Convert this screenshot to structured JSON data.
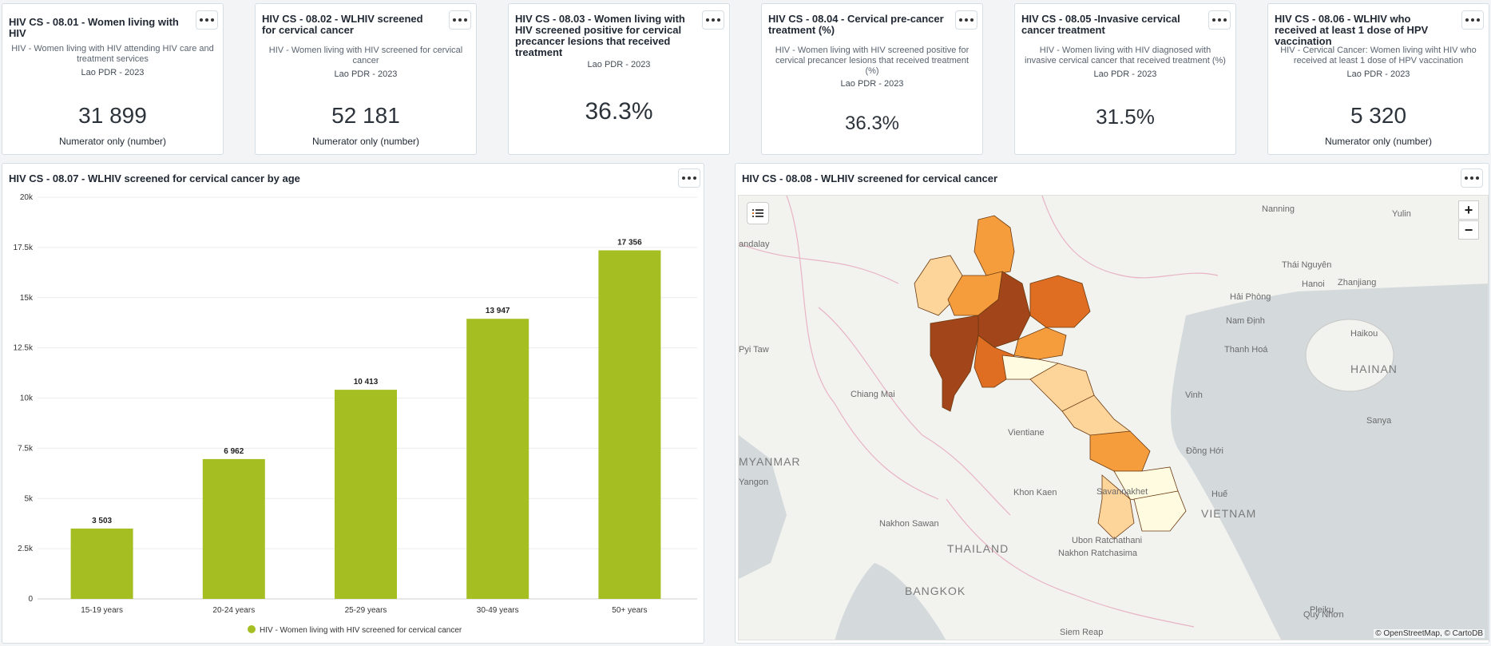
{
  "kpis": [
    {
      "title": "HIV CS - 08.01 - Women living with HIV",
      "subtitle": "HIV - Women living with HIV attending HIV care and treatment services",
      "period": "Lao PDR - 2023",
      "value": "31 899",
      "unit": "Numerator only (number)"
    },
    {
      "title": "HIV CS - 08.02 - WLHIV screened for cervical cancer",
      "subtitle": "HIV - Women living with HIV screened for cervical cancer",
      "period": "Lao PDR - 2023",
      "value": "52 181",
      "unit": "Numerator only (number)"
    },
    {
      "title": "HIV CS - 08.03 - Women living with HIV screened positive for cervical precancer lesions that received treatment",
      "subtitle": "",
      "period": "Lao PDR - 2023",
      "value": "36.3%",
      "unit": ""
    },
    {
      "title": "HIV CS - 08.04 - Cervical pre-cancer treatment (%)",
      "subtitle": "HIV - Women living with HIV screened positive for cervical precancer lesions that received treatment (%)",
      "period": "Lao PDR - 2023",
      "value": "36.3%",
      "unit": ""
    },
    {
      "title": "HIV CS - 08.05 -Invasive cervical cancer treatment",
      "subtitle": "HIV - Women living with HIV diagnosed with invasive cervical cancer that received treatment (%)",
      "period": "Lao PDR - 2023",
      "value": "31.5%",
      "unit": ""
    },
    {
      "title": "HIV CS - 08.06 - WLHIV who received at least 1 dose of HPV vaccination",
      "subtitle": "HIV - Cervical Cancer: Women living wiht HIV who received at least 1 dose of HPV vaccination",
      "period": "Lao PDR - 2023",
      "value": "5 320",
      "unit": "Numerator only (number)"
    }
  ],
  "bar_card": {
    "title": "HIV CS - 08.07 - WLHIV screened for cervical cancer by age"
  },
  "map_card": {
    "title": "HIV CS - 08.08 - WLHIV screened for cervical cancer",
    "attribution": "© OpenStreetMap, © CartoDB",
    "zoom_in": "+",
    "zoom_out": "−",
    "labels": [
      "Nanning",
      "Yulin",
      "andalay",
      "Thái Nguyên",
      "Hanoi",
      "Zhanjiang",
      "Hải Phòng",
      "Nam Định",
      "Haikou",
      "Pyi Taw",
      "Thanh Hoá",
      "HAINAN",
      "Chiang Mai",
      "Vinh",
      "Sanya",
      "MYANMAR",
      "Yangon",
      "Huế",
      "Khon Kaen",
      "Savannakhet",
      "VIETNAM",
      "Nakhon Sawan",
      "Ubon Ratchathani",
      "THAILAND",
      "Nakhon Ratchasima",
      "BANGKOK",
      "Pleiku",
      "Quy Nhơn",
      "Siem Reap",
      "Vientiane",
      "Đồng Hới"
    ]
  },
  "colors": {
    "bar": "#a5bf22",
    "accent": "#a04a1a"
  },
  "chart_data": {
    "type": "bar",
    "categories": [
      "15-19 years",
      "20-24 years",
      "25-29 years",
      "30-49 years",
      "50+ years"
    ],
    "series": [
      {
        "name": "HIV - Women living with HIV screened for cervical cancer",
        "values": [
          3503,
          6962,
          10413,
          13947,
          17356
        ]
      }
    ],
    "value_labels": [
      "3 503",
      "6 962",
      "10 413",
      "13 947",
      "17 356"
    ],
    "yticks": [
      "0",
      "2.5k",
      "5k",
      "7.5k",
      "10k",
      "12.5k",
      "15k",
      "17.5k",
      "20k"
    ],
    "ylim": [
      0,
      20000
    ],
    "grid": true,
    "legend": "bottom"
  }
}
